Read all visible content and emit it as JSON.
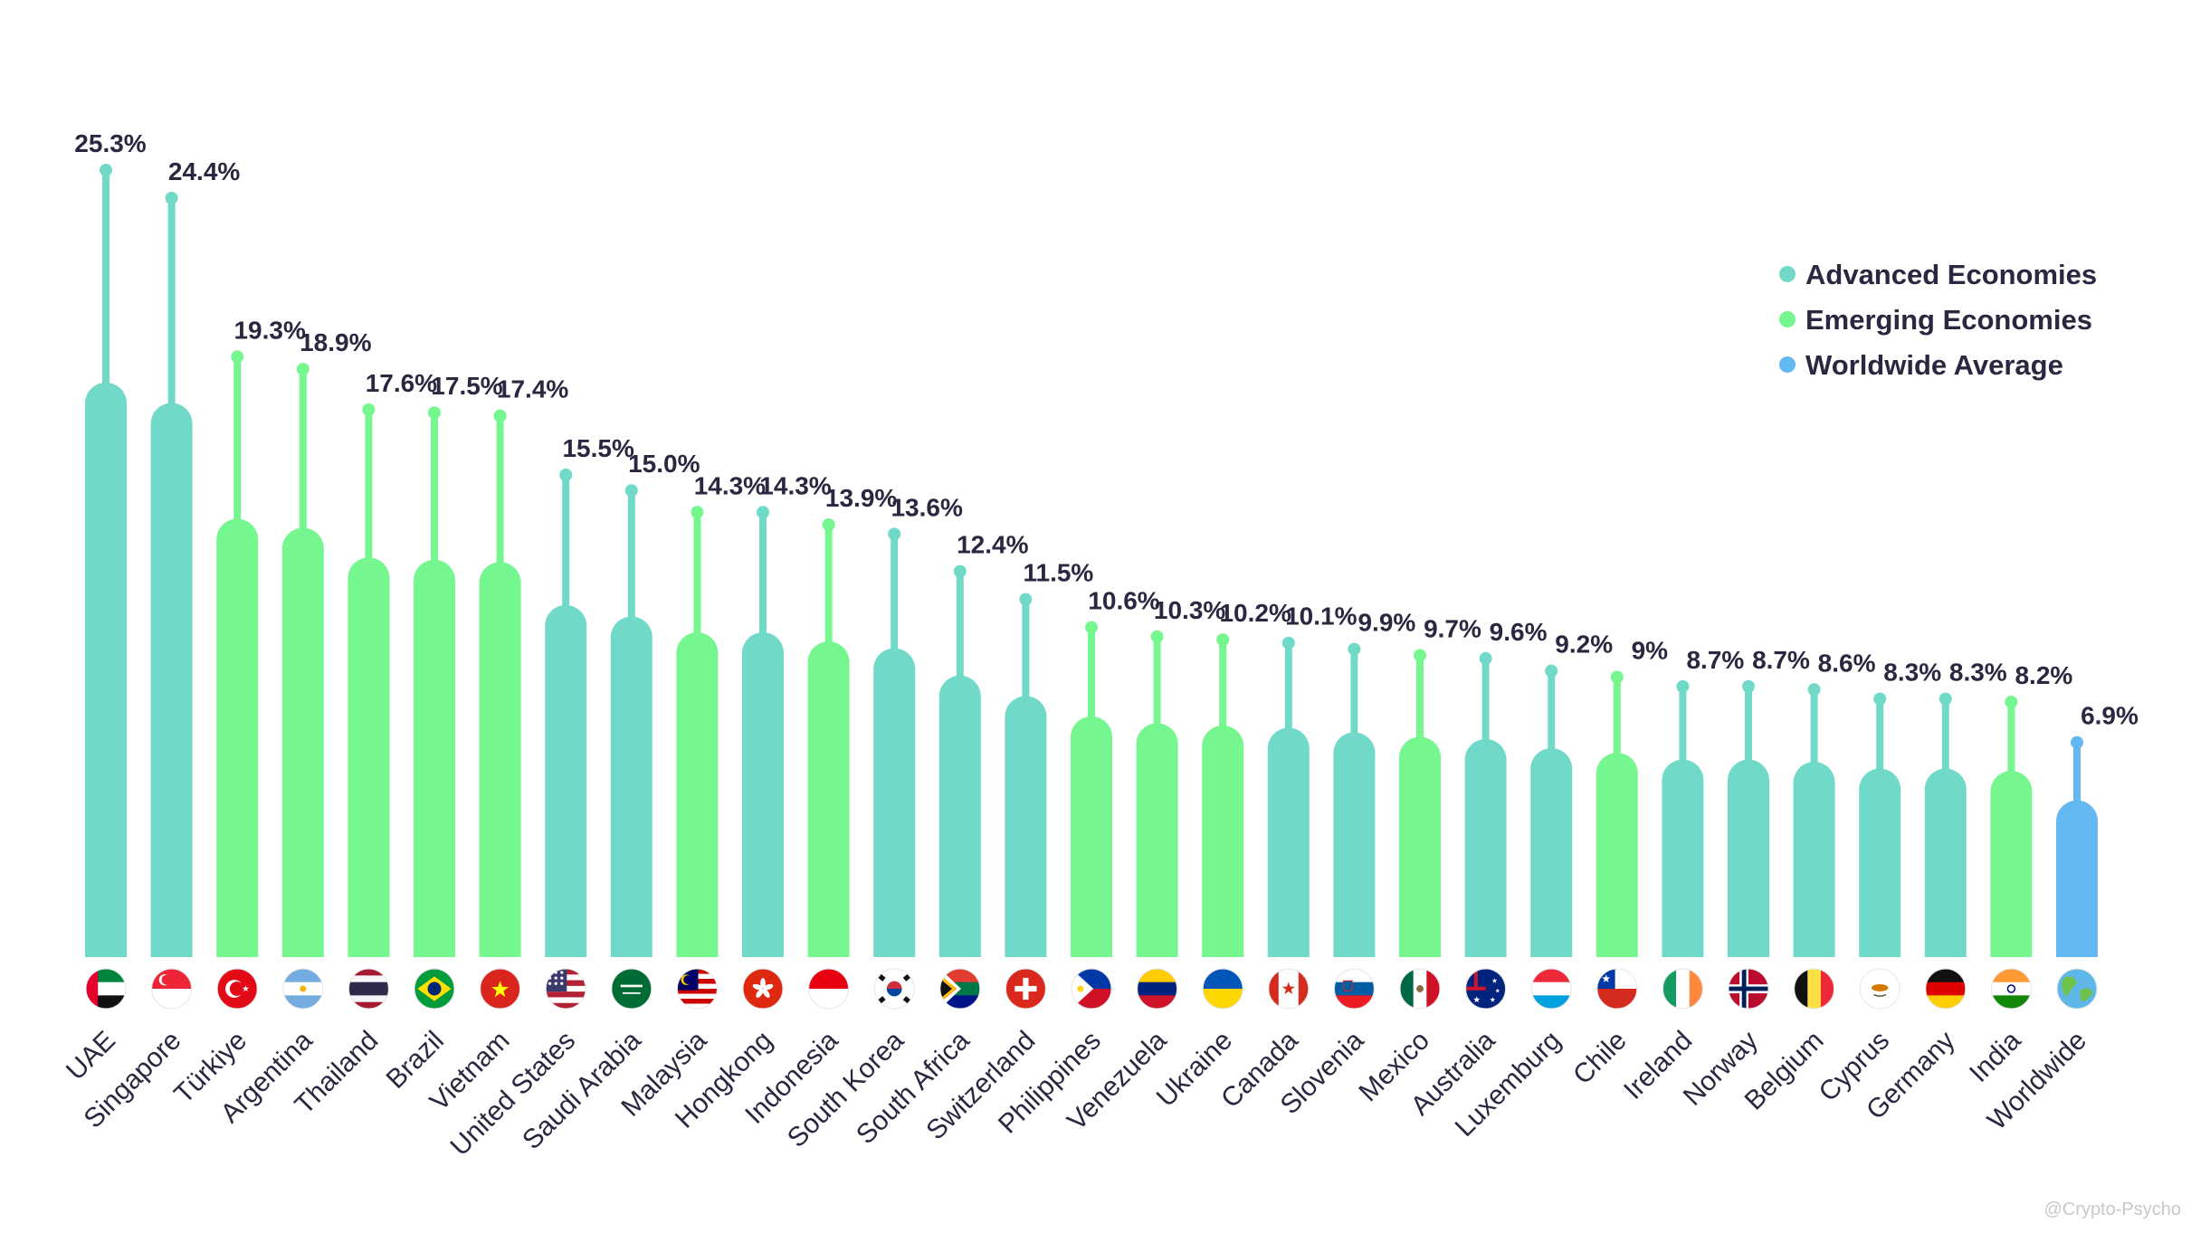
{
  "colors": {
    "advanced": "#71d9c8",
    "emerging": "#76f68f",
    "worldwide": "#64b8f1",
    "text": "#2a2740"
  },
  "legend": [
    {
      "label": "Advanced Economies",
      "group": "advanced"
    },
    {
      "label": "Emerging Economies",
      "group": "emerging"
    },
    {
      "label": "Worldwide Average",
      "group": "worldwide"
    }
  ],
  "watermark": "@Crypto-Psycho",
  "chart_data": {
    "type": "bar",
    "title": "",
    "xlabel": "",
    "ylabel": "",
    "legend_position": "top-right",
    "grid": false,
    "categories": [
      "UAE",
      "Singapore",
      "Türkiye",
      "Argentina",
      "Thailand",
      "Brazil",
      "Vietnam",
      "United States",
      "Saudi Arabia",
      "Malaysia",
      "Hongkong",
      "Indonesia",
      "South Korea",
      "South Africa",
      "Switzerland",
      "Philippines",
      "Venezuela",
      "Ukraine",
      "Canada",
      "Slovenia",
      "Mexico",
      "Australia",
      "Luxemburg",
      "Chile",
      "Ireland",
      "Norway",
      "Belgium",
      "Cyprus",
      "Germany",
      "India",
      "Worldwide"
    ],
    "values": [
      25.3,
      24.4,
      19.3,
      18.9,
      17.6,
      17.5,
      17.4,
      15.5,
      15.0,
      14.3,
      14.3,
      13.9,
      13.6,
      12.4,
      11.5,
      10.6,
      10.3,
      10.2,
      10.1,
      9.9,
      9.7,
      9.6,
      9.2,
      9,
      8.7,
      8.7,
      8.6,
      8.3,
      8.3,
      8.2,
      6.9
    ],
    "value_labels": [
      "25.3%",
      "24.4%",
      "19.3%",
      "18.9%",
      "17.6%",
      "17.5%",
      "17.4%",
      "15.5%",
      "15.0%",
      "14.3%",
      "14.3%",
      "13.9%",
      "13.6%",
      "12.4%",
      "11.5%",
      "10.6%",
      "10.3%",
      "10.2%",
      "10.1%",
      "9.9%",
      "9.7%",
      "9.6%",
      "9.2%",
      "9%",
      "8.7%",
      "8.7%",
      "8.6%",
      "8.3%",
      "8.3%",
      "8.2%",
      "6.9%"
    ],
    "groups": [
      "advanced",
      "advanced",
      "emerging",
      "emerging",
      "emerging",
      "emerging",
      "emerging",
      "advanced",
      "advanced",
      "emerging",
      "advanced",
      "emerging",
      "advanced",
      "advanced",
      "advanced",
      "emerging",
      "emerging",
      "emerging",
      "advanced",
      "advanced",
      "emerging",
      "advanced",
      "advanced",
      "emerging",
      "advanced",
      "advanced",
      "advanced",
      "advanced",
      "advanced",
      "emerging",
      "worldwide"
    ],
    "flags": [
      "flag-uae-icon",
      "flag-singapore-icon",
      "flag-turkiye-icon",
      "flag-argentina-icon",
      "flag-thailand-icon",
      "flag-brazil-icon",
      "flag-vietnam-icon",
      "flag-united-states-icon",
      "flag-saudi-arabia-icon",
      "flag-malaysia-icon",
      "flag-hongkong-icon",
      "flag-indonesia-icon",
      "flag-south-korea-icon",
      "flag-south-africa-icon",
      "flag-switzerland-icon",
      "flag-philippines-icon",
      "flag-venezuela-icon",
      "flag-ukraine-icon",
      "flag-canada-icon",
      "flag-slovenia-icon",
      "flag-mexico-icon",
      "flag-australia-icon",
      "flag-luxemburg-icon",
      "flag-chile-icon",
      "flag-ireland-icon",
      "flag-norway-icon",
      "flag-belgium-icon",
      "flag-cyprus-icon",
      "flag-germany-icon",
      "flag-india-icon",
      "globe-icon"
    ]
  }
}
